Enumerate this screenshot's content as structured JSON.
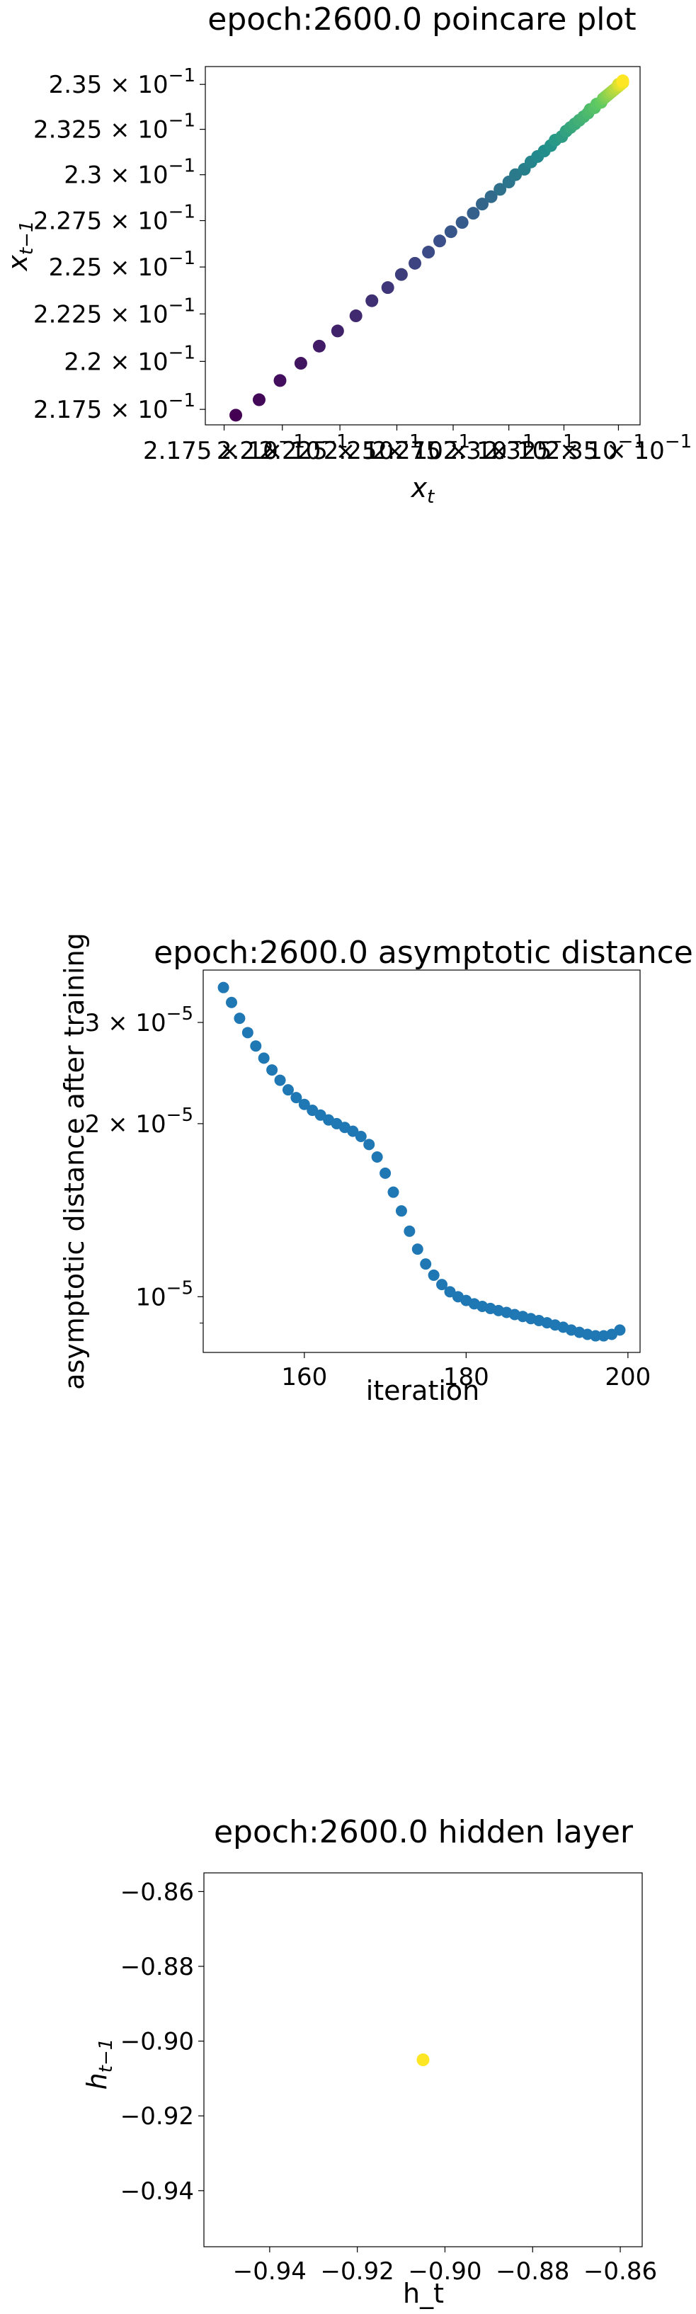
{
  "chart_data": [
    {
      "type": "scatter",
      "title": "epoch:2600.0 poincare plot",
      "xlabel": "x_t",
      "ylabel": "x_{t−1}",
      "scale": "log",
      "xlim": [
        0.2167,
        0.236
      ],
      "ylim": [
        0.2167,
        0.236
      ],
      "y_ticks": [
        {
          "value": 0.2175,
          "label": "2.175 × 10^−1"
        },
        {
          "value": 0.22,
          "label": "2.2 × 10^−1"
        },
        {
          "value": 0.2225,
          "label": "2.225 × 10^−1"
        },
        {
          "value": 0.225,
          "label": "2.25 × 10^−1"
        },
        {
          "value": 0.2275,
          "label": "2.275 × 10^−1"
        },
        {
          "value": 0.23,
          "label": "2.3 × 10^−1"
        },
        {
          "value": 0.2325,
          "label": "2.325 × 10^−1"
        },
        {
          "value": 0.235,
          "label": "2.35 × 10^−1"
        }
      ],
      "x_ticks": [
        {
          "value": 0.2175,
          "label": "2.175 × 10^−1"
        },
        {
          "value": 0.22,
          "label": "2.2 × 10^−1"
        },
        {
          "value": 0.2225,
          "label": "2.225 × 10^−1"
        },
        {
          "value": 0.225,
          "label": "2.25 × 10^−1"
        },
        {
          "value": 0.2275,
          "label": "2.275 × 10^−1"
        },
        {
          "value": 0.23,
          "label": "2.3 × 10^−1"
        },
        {
          "value": 0.2325,
          "label": "2.325 × 10^−1"
        },
        {
          "value": 0.235,
          "label": "2.35 × 10^−1"
        }
      ],
      "colormap": "viridis",
      "points": [
        [
          0.218,
          0.2172
        ],
        [
          0.219,
          0.218
        ],
        [
          0.2199,
          0.219
        ],
        [
          0.2208,
          0.2199
        ],
        [
          0.2216,
          0.2208
        ],
        [
          0.2224,
          0.2216
        ],
        [
          0.2232,
          0.2224
        ],
        [
          0.2239,
          0.2232
        ],
        [
          0.2246,
          0.2239
        ],
        [
          0.2252,
          0.2246
        ],
        [
          0.2258,
          0.2252
        ],
        [
          0.2264,
          0.2258
        ],
        [
          0.2269,
          0.2264
        ],
        [
          0.2274,
          0.2269
        ],
        [
          0.2279,
          0.2274
        ],
        [
          0.2284,
          0.2279
        ],
        [
          0.2288,
          0.2284
        ],
        [
          0.2292,
          0.2288
        ],
        [
          0.2296,
          0.2292
        ],
        [
          0.23,
          0.2296
        ],
        [
          0.2303,
          0.23
        ],
        [
          0.2307,
          0.2303
        ],
        [
          0.231,
          0.2307
        ],
        [
          0.2313,
          0.231
        ],
        [
          0.2316,
          0.2313
        ],
        [
          0.2319,
          0.2316
        ],
        [
          0.2321,
          0.2319
        ],
        [
          0.2324,
          0.2321
        ],
        [
          0.2326,
          0.2324
        ],
        [
          0.2328,
          0.2326
        ],
        [
          0.233,
          0.2328
        ],
        [
          0.2332,
          0.233
        ],
        [
          0.2334,
          0.2332
        ],
        [
          0.2336,
          0.2334
        ],
        [
          0.2337,
          0.2336
        ],
        [
          0.2339,
          0.2337
        ],
        [
          0.234,
          0.2339
        ],
        [
          0.2342,
          0.234
        ],
        [
          0.2343,
          0.2342
        ],
        [
          0.2344,
          0.2343
        ],
        [
          0.2345,
          0.2344
        ],
        [
          0.2346,
          0.2345
        ],
        [
          0.2347,
          0.2346
        ],
        [
          0.2348,
          0.2347
        ],
        [
          0.2349,
          0.2348
        ],
        [
          0.235,
          0.2349
        ],
        [
          0.235,
          0.235
        ],
        [
          0.2351,
          0.235
        ],
        [
          0.2352,
          0.2351
        ],
        [
          0.2352,
          0.2352
        ]
      ]
    },
    {
      "type": "scatter",
      "title": "epoch:2600.0 asymptotic distance",
      "xlabel": "iteration",
      "ylabel": "asymptotic distance after training",
      "yscale": "log",
      "xlim": [
        147.5,
        201.5
      ],
      "ylim": [
        8e-06,
        3.7e-05
      ],
      "color": "#1f77b4",
      "x_ticks": [
        {
          "value": 160,
          "label": "160"
        },
        {
          "value": 180,
          "label": "180"
        },
        {
          "value": 200,
          "label": "200"
        }
      ],
      "y_ticks": [
        {
          "value": 1e-05,
          "label": "10^−5"
        },
        {
          "value": 2e-05,
          "label": "2 × 10^−5"
        },
        {
          "value": 3e-05,
          "label": "3 × 10^−5"
        }
      ],
      "x": [
        150,
        151,
        152,
        153,
        154,
        155,
        156,
        157,
        158,
        159,
        160,
        161,
        162,
        163,
        164,
        165,
        166,
        167,
        168,
        169,
        170,
        171,
        172,
        173,
        174,
        175,
        176,
        177,
        178,
        179,
        180,
        181,
        182,
        183,
        184,
        185,
        186,
        187,
        188,
        189,
        190,
        191,
        192,
        193,
        194,
        195,
        196,
        197,
        198,
        199
      ],
      "y": [
        3.45e-05,
        3.25e-05,
        3.05e-05,
        2.88e-05,
        2.73e-05,
        2.6e-05,
        2.48e-05,
        2.38e-05,
        2.29e-05,
        2.22e-05,
        2.16e-05,
        2.11e-05,
        2.07e-05,
        2.03e-05,
        2e-05,
        1.97e-05,
        1.94e-05,
        1.9e-05,
        1.84e-05,
        1.75e-05,
        1.64e-05,
        1.52e-05,
        1.41e-05,
        1.3e-05,
        1.21e-05,
        1.14e-05,
        1.09e-05,
        1.05e-05,
        1.02e-05,
        1e-05,
        9.85e-06,
        9.72e-06,
        9.62e-06,
        9.54e-06,
        9.46e-06,
        9.39e-06,
        9.31e-06,
        9.24e-06,
        9.16e-06,
        9.09e-06,
        9.01e-06,
        8.93e-06,
        8.85e-06,
        8.75e-06,
        8.67e-06,
        8.6e-06,
        8.55e-06,
        8.55e-06,
        8.6e-06,
        8.75e-06
      ]
    },
    {
      "type": "scatter",
      "title": "epoch:2600.0 hidden layer",
      "xlabel": "h_t",
      "ylabel": "h_{t−1}",
      "xlim": [
        -0.955,
        -0.855
      ],
      "ylim": [
        -0.955,
        -0.855
      ],
      "color": "#fde725",
      "x_ticks": [
        {
          "value": -0.94,
          "label": "−0.94"
        },
        {
          "value": -0.92,
          "label": "−0.92"
        },
        {
          "value": -0.9,
          "label": "−0.90"
        },
        {
          "value": -0.88,
          "label": "−0.88"
        },
        {
          "value": -0.86,
          "label": "−0.86"
        }
      ],
      "y_ticks": [
        {
          "value": -0.86,
          "label": "−0.86"
        },
        {
          "value": -0.88,
          "label": "−0.88"
        },
        {
          "value": -0.9,
          "label": "−0.90"
        },
        {
          "value": -0.92,
          "label": "−0.92"
        },
        {
          "value": -0.94,
          "label": "−0.94"
        }
      ],
      "points": [
        [
          -0.905,
          -0.905
        ]
      ]
    }
  ]
}
